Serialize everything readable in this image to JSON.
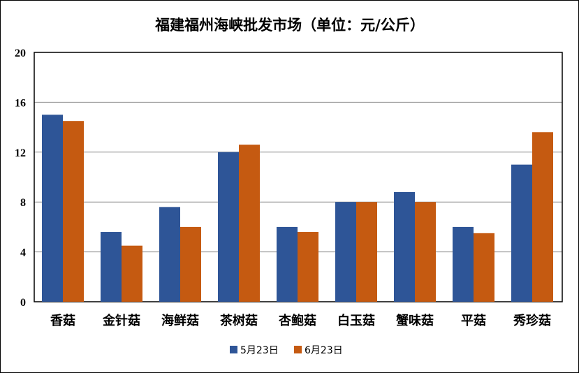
{
  "chart_data": {
    "type": "bar",
    "title": "福建福州海峡批发市场（单位：元/公斤）",
    "categories": [
      "香菇",
      "金针菇",
      "海鲜菇",
      "茶树菇",
      "杏鲍菇",
      "白玉菇",
      "蟹味菇",
      "平菇",
      "秀珍菇"
    ],
    "series": [
      {
        "name": "5月23日",
        "color": "#2E5597",
        "values": [
          15,
          5.6,
          7.6,
          12,
          6,
          8,
          8.8,
          6,
          11
        ]
      },
      {
        "name": "6月23日",
        "color": "#C55A11",
        "values": [
          14.5,
          4.5,
          6,
          12.6,
          5.6,
          8,
          8,
          5.5,
          13.6
        ]
      }
    ],
    "ylim": [
      0,
      20
    ],
    "yticks": [
      0,
      4,
      8,
      12,
      16,
      20
    ],
    "grid": true,
    "legend": "bottom"
  }
}
